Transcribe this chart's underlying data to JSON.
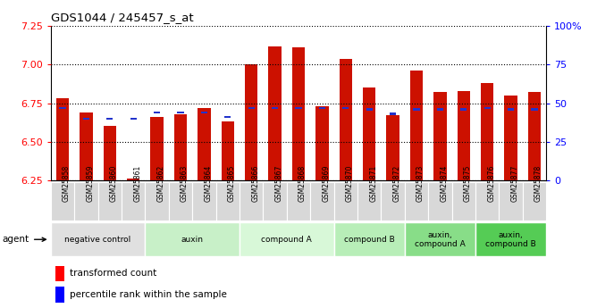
{
  "title": "GDS1044 / 245457_s_at",
  "samples": [
    "GSM25858",
    "GSM25859",
    "GSM25860",
    "GSM25861",
    "GSM25862",
    "GSM25863",
    "GSM25864",
    "GSM25865",
    "GSM25866",
    "GSM25867",
    "GSM25868",
    "GSM25869",
    "GSM25870",
    "GSM25871",
    "GSM25872",
    "GSM25873",
    "GSM25874",
    "GSM25875",
    "GSM25876",
    "GSM25877",
    "GSM25878"
  ],
  "red_values": [
    6.78,
    6.69,
    6.6,
    6.26,
    6.66,
    6.68,
    6.72,
    6.63,
    7.0,
    7.12,
    7.11,
    6.73,
    7.04,
    6.85,
    6.67,
    6.96,
    6.82,
    6.83,
    6.88,
    6.8,
    6.82
  ],
  "blue_pct": [
    47,
    40,
    40,
    40,
    44,
    44,
    44,
    41,
    47,
    47,
    47,
    47,
    47,
    46,
    43,
    46,
    46,
    46,
    47,
    46,
    46
  ],
  "ylim": [
    6.25,
    7.25
  ],
  "bar_color": "#cc1100",
  "blue_color": "#2233cc",
  "bar_width": 0.55,
  "groups": [
    {
      "label": "negative control",
      "start": 0,
      "end": 3,
      "color": "#e0e0e0"
    },
    {
      "label": "auxin",
      "start": 4,
      "end": 7,
      "color": "#c8f0c8"
    },
    {
      "label": "compound A",
      "start": 8,
      "end": 11,
      "color": "#d8f8d8"
    },
    {
      "label": "compound B",
      "start": 12,
      "end": 14,
      "color": "#b8eeb8"
    },
    {
      "label": "auxin,\ncompound A",
      "start": 15,
      "end": 17,
      "color": "#88dd88"
    },
    {
      "label": "auxin,\ncompound B",
      "start": 18,
      "end": 20,
      "color": "#55cc55"
    }
  ],
  "tick_label_bg": "#d8d8d8"
}
